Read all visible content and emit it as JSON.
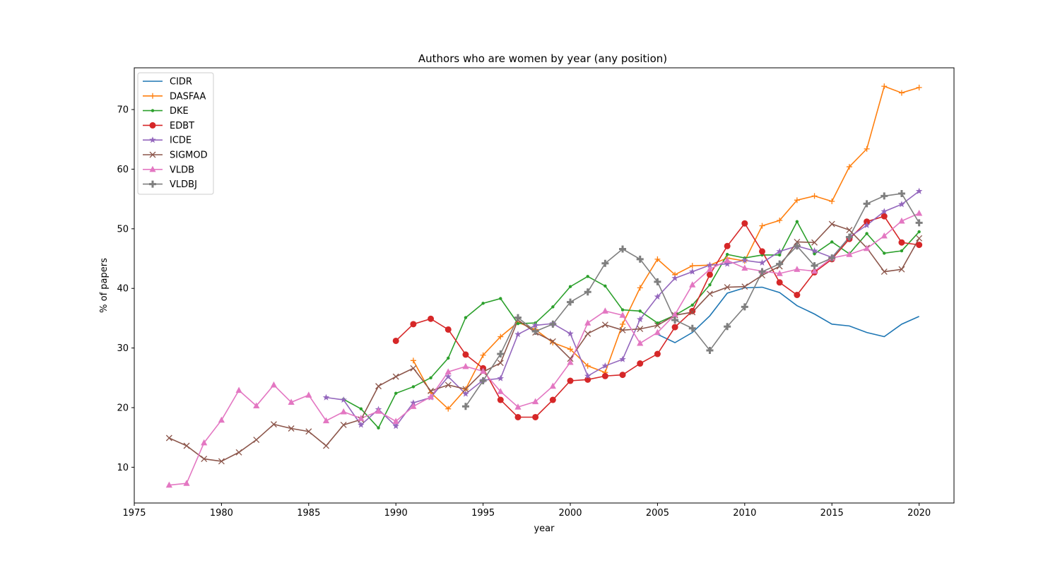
{
  "chart_data": {
    "type": "line",
    "title": "Authors who are women by year (any position)",
    "xlabel": "year",
    "ylabel": "% of papers",
    "xlim": [
      1975,
      2022
    ],
    "ylim": [
      4,
      77
    ],
    "xticks": [
      1975,
      1980,
      1985,
      1990,
      1995,
      2000,
      2005,
      2010,
      2015,
      2020
    ],
    "yticks": [
      10,
      20,
      30,
      40,
      50,
      60,
      70
    ],
    "grid": false,
    "legend_position": "top-left",
    "series": [
      {
        "name": "CIDR",
        "color": "#1f77b4",
        "marker": "none",
        "x": [
          2005,
          2006,
          2007,
          2008,
          2009,
          2010,
          2011,
          2012,
          2013,
          2014,
          2015,
          2016,
          2017,
          2018,
          2019,
          2020
        ],
        "y": [
          32.3,
          30.9,
          32.6,
          35.4,
          39.2,
          40.1,
          40.2,
          39.3,
          37.1,
          35.7,
          34.0,
          33.7,
          32.6,
          31.9,
          34.0,
          35.3
        ]
      },
      {
        "name": "DASFAA",
        "color": "#ff7f0e",
        "marker": "plus",
        "x": [
          1991,
          1992,
          1993,
          1994,
          1995,
          1996,
          1997,
          1998,
          1999,
          2000,
          2001,
          2002,
          2003,
          2004,
          2005,
          2006,
          2007,
          2008,
          2009,
          2010,
          2011,
          2012,
          2013,
          2014,
          2015,
          2016,
          2017,
          2018,
          2019,
          2020
        ],
        "y": [
          27.9,
          22.5,
          19.8,
          23.1,
          28.8,
          31.9,
          34.3,
          33.1,
          30.9,
          29.8,
          27.0,
          25.9,
          34.0,
          40.1,
          44.9,
          42.3,
          43.8,
          43.9,
          45.1,
          44.6,
          50.5,
          51.4,
          54.8,
          55.5,
          54.6,
          60.4,
          63.4,
          73.9,
          72.8,
          73.7
        ]
      },
      {
        "name": "DKE",
        "color": "#2ca02c",
        "marker": "point",
        "x": [
          1987,
          1988,
          1989,
          1990,
          1991,
          1992,
          1993,
          1994,
          1995,
          1996,
          1997,
          1998,
          1999,
          2000,
          2001,
          2002,
          2003,
          2004,
          2005,
          2006,
          2007,
          2008,
          2009,
          2010,
          2011,
          2012,
          2013,
          2014,
          2015,
          2016,
          2017,
          2018,
          2019,
          2020
        ],
        "y": [
          21.4,
          19.8,
          16.6,
          22.4,
          23.5,
          25.0,
          28.3,
          35.1,
          37.5,
          38.3,
          34.1,
          34.2,
          36.9,
          40.3,
          42.0,
          40.4,
          36.4,
          36.2,
          34.2,
          35.5,
          37.2,
          40.6,
          45.7,
          45.1,
          45.6,
          45.6,
          51.2,
          45.8,
          47.8,
          45.8,
          49.2,
          45.9,
          46.3,
          49.5
        ]
      },
      {
        "name": "EDBT",
        "color": "#d62728",
        "marker": "circle",
        "x": [
          1990,
          1991,
          1992,
          1993,
          1994,
          1995,
          1996,
          1997,
          1998,
          1999,
          2000,
          2001,
          2002,
          2003,
          2004,
          2005,
          2006,
          2007,
          2008,
          2009,
          2010,
          2011,
          2012,
          2013,
          2014,
          2015,
          2016,
          2017,
          2018,
          2019,
          2020
        ],
        "y": [
          31.2,
          34.0,
          34.9,
          33.1,
          28.9,
          26.6,
          21.3,
          18.4,
          18.4,
          21.3,
          24.5,
          24.7,
          25.3,
          25.5,
          27.4,
          29.0,
          33.5,
          36.2,
          42.3,
          47.1,
          50.9,
          46.2,
          41.0,
          38.9,
          42.7,
          44.9,
          48.3,
          51.2,
          52.1,
          47.7,
          47.3
        ]
      },
      {
        "name": "ICDE",
        "color": "#9467bd",
        "marker": "star",
        "x": [
          1986,
          1987,
          1988,
          1989,
          1990,
          1991,
          1992,
          1993,
          1994,
          1995,
          1996,
          1997,
          1998,
          1999,
          2000,
          2001,
          2002,
          2003,
          2004,
          2005,
          2006,
          2007,
          2008,
          2009,
          2010,
          2011,
          2012,
          2013,
          2014,
          2015,
          2016,
          2017,
          2018,
          2019,
          2020
        ],
        "y": [
          21.7,
          21.3,
          17.1,
          19.7,
          16.9,
          20.8,
          21.7,
          25.2,
          22.3,
          24.6,
          24.9,
          32.3,
          33.8,
          34.1,
          32.4,
          25.3,
          27.0,
          28.1,
          34.8,
          38.6,
          41.7,
          42.8,
          43.9,
          44.1,
          44.7,
          44.3,
          46.2,
          47.1,
          46.3,
          45.2,
          48.6,
          50.6,
          52.9,
          54.1,
          56.3
        ]
      },
      {
        "name": "SIGMOD",
        "color": "#8c564b",
        "marker": "x",
        "x": [
          1977,
          1978,
          1979,
          1980,
          1981,
          1982,
          1983,
          1984,
          1985,
          1986,
          1987,
          1988,
          1989,
          1990,
          1991,
          1992,
          1993,
          1994,
          1995,
          1996,
          1997,
          1998,
          1999,
          2000,
          2001,
          2002,
          2003,
          2004,
          2005,
          2006,
          2007,
          2008,
          2009,
          2010,
          2011,
          2012,
          2013,
          2014,
          2015,
          2016,
          2017,
          2018,
          2019,
          2020
        ],
        "y": [
          14.9,
          13.6,
          11.4,
          11.0,
          12.5,
          14.6,
          17.2,
          16.5,
          16.0,
          13.6,
          17.1,
          18.0,
          23.6,
          25.2,
          26.6,
          22.8,
          23.8,
          23.1,
          26.0,
          27.5,
          34.7,
          32.6,
          31.1,
          28.2,
          32.4,
          33.9,
          33.0,
          33.2,
          33.8,
          35.5,
          36.0,
          39.1,
          40.2,
          40.3,
          42.2,
          43.7,
          47.8,
          47.7,
          50.8,
          49.8,
          46.8,
          42.8,
          43.2,
          48.4
        ]
      },
      {
        "name": "VLDB",
        "color": "#e377c2",
        "marker": "triangle",
        "x": [
          1977,
          1978,
          1979,
          1980,
          1981,
          1982,
          1983,
          1984,
          1985,
          1986,
          1987,
          1988,
          1989,
          1990,
          1991,
          1992,
          1993,
          1994,
          1995,
          1996,
          1997,
          1998,
          1999,
          2000,
          2001,
          2002,
          2003,
          2004,
          2005,
          2006,
          2007,
          2008,
          2009,
          2010,
          2011,
          2012,
          2013,
          2014,
          2015,
          2016,
          2017,
          2018,
          2019,
          2020
        ],
        "y": [
          7.0,
          7.3,
          14.1,
          17.9,
          22.9,
          20.3,
          23.8,
          20.9,
          22.1,
          17.8,
          19.3,
          18.2,
          19.4,
          17.7,
          20.2,
          21.8,
          26.0,
          26.9,
          26.1,
          22.7,
          20.1,
          21.0,
          23.6,
          27.6,
          34.2,
          36.2,
          35.5,
          30.8,
          32.6,
          35.6,
          40.6,
          43.2,
          44.7,
          43.4,
          42.9,
          42.5,
          43.2,
          42.9,
          45.1,
          45.7,
          46.7,
          48.8,
          51.3,
          52.6
        ]
      },
      {
        "name": "VLDBJ",
        "color": "#7f7f7f",
        "marker": "pluslarge",
        "x": [
          1994,
          1995,
          1996,
          1997,
          1998,
          1999,
          2000,
          2001,
          2002,
          2003,
          2004,
          2005,
          2006,
          2007,
          2008,
          2009,
          2010,
          2011,
          2012,
          2013,
          2014,
          2015,
          2016,
          2017,
          2018,
          2019,
          2020
        ],
        "y": [
          20.2,
          24.5,
          29.0,
          35.1,
          32.8,
          34.0,
          37.7,
          39.4,
          44.2,
          46.6,
          44.9,
          41.1,
          34.7,
          33.3,
          29.6,
          33.6,
          36.9,
          42.8,
          44.1,
          47.1,
          43.8,
          45.1,
          48.6,
          54.2,
          55.5,
          55.9,
          51.0
        ]
      }
    ]
  }
}
